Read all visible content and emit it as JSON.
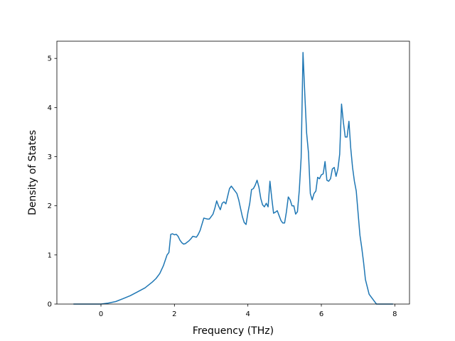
{
  "chart_data": {
    "type": "line",
    "title": "",
    "xlabel": "Frequency (THz)",
    "ylabel": "Density of States",
    "xlim": [
      -1.2,
      8.4
    ],
    "ylim": [
      0,
      5.35
    ],
    "xticks": [
      0,
      2,
      4,
      6,
      8
    ],
    "xtick_labels": [
      "0",
      "2",
      "4",
      "6",
      "8"
    ],
    "yticks": [
      0,
      1,
      2,
      3,
      4,
      5
    ],
    "ytick_labels": [
      "0",
      "1",
      "2",
      "3",
      "4",
      "5"
    ],
    "grid": false,
    "legend": "none",
    "series": [
      {
        "color": "#1f77b4",
        "x": [
          -0.75,
          -0.5,
          -0.25,
          0.0,
          0.2,
          0.4,
          0.6,
          0.8,
          1.0,
          1.2,
          1.4,
          1.5,
          1.6,
          1.7,
          1.8,
          1.85,
          1.9,
          1.95,
          2.0,
          2.05,
          2.1,
          2.15,
          2.2,
          2.25,
          2.3,
          2.4,
          2.45,
          2.5,
          2.6,
          2.65,
          2.7,
          2.8,
          2.85,
          2.9,
          2.95,
          3.0,
          3.05,
          3.1,
          3.15,
          3.2,
          3.25,
          3.3,
          3.35,
          3.4,
          3.45,
          3.5,
          3.55,
          3.6,
          3.65,
          3.7,
          3.75,
          3.8,
          3.85,
          3.9,
          3.95,
          4.0,
          4.05,
          4.1,
          4.15,
          4.2,
          4.25,
          4.3,
          4.35,
          4.4,
          4.45,
          4.5,
          4.55,
          4.6,
          4.65,
          4.7,
          4.75,
          4.8,
          4.85,
          4.9,
          4.95,
          5.0,
          5.05,
          5.1,
          5.15,
          5.2,
          5.25,
          5.3,
          5.35,
          5.4,
          5.45,
          5.5,
          5.55,
          5.6,
          5.65,
          5.7,
          5.75,
          5.8,
          5.85,
          5.9,
          5.95,
          6.0,
          6.05,
          6.1,
          6.15,
          6.2,
          6.25,
          6.3,
          6.35,
          6.4,
          6.45,
          6.5,
          6.55,
          6.6,
          6.65,
          6.7,
          6.75,
          6.8,
          6.85,
          6.9,
          6.95,
          7.0,
          7.05,
          7.1,
          7.15,
          7.2,
          7.25,
          7.3,
          7.5,
          7.7,
          7.95
        ],
        "y": [
          0.0,
          0.0,
          0.0,
          0.0,
          0.02,
          0.05,
          0.11,
          0.17,
          0.25,
          0.33,
          0.45,
          0.52,
          0.62,
          0.78,
          1.0,
          1.05,
          1.42,
          1.43,
          1.41,
          1.42,
          1.38,
          1.3,
          1.25,
          1.22,
          1.23,
          1.29,
          1.33,
          1.38,
          1.36,
          1.42,
          1.5,
          1.75,
          1.74,
          1.73,
          1.73,
          1.78,
          1.83,
          1.95,
          2.1,
          2.0,
          1.92,
          2.05,
          2.08,
          2.04,
          2.2,
          2.35,
          2.4,
          2.35,
          2.3,
          2.25,
          2.12,
          1.95,
          1.78,
          1.66,
          1.62,
          1.86,
          2.05,
          2.33,
          2.35,
          2.42,
          2.52,
          2.38,
          2.15,
          2.02,
          1.98,
          2.05,
          1.98,
          2.5,
          2.15,
          1.85,
          1.87,
          1.9,
          1.8,
          1.7,
          1.65,
          1.65,
          1.88,
          2.18,
          2.12,
          2.0,
          2.0,
          1.83,
          1.88,
          2.32,
          2.98,
          5.12,
          4.25,
          3.48,
          3.08,
          2.25,
          2.12,
          2.25,
          2.3,
          2.58,
          2.55,
          2.63,
          2.65,
          2.9,
          2.52,
          2.5,
          2.55,
          2.75,
          2.78,
          2.6,
          2.75,
          3.05,
          4.07,
          3.7,
          3.4,
          3.4,
          3.72,
          3.18,
          2.78,
          2.5,
          2.3,
          1.85,
          1.4,
          1.15,
          0.85,
          0.5,
          0.35,
          0.2,
          0.0,
          0.0,
          0.0
        ]
      }
    ]
  }
}
